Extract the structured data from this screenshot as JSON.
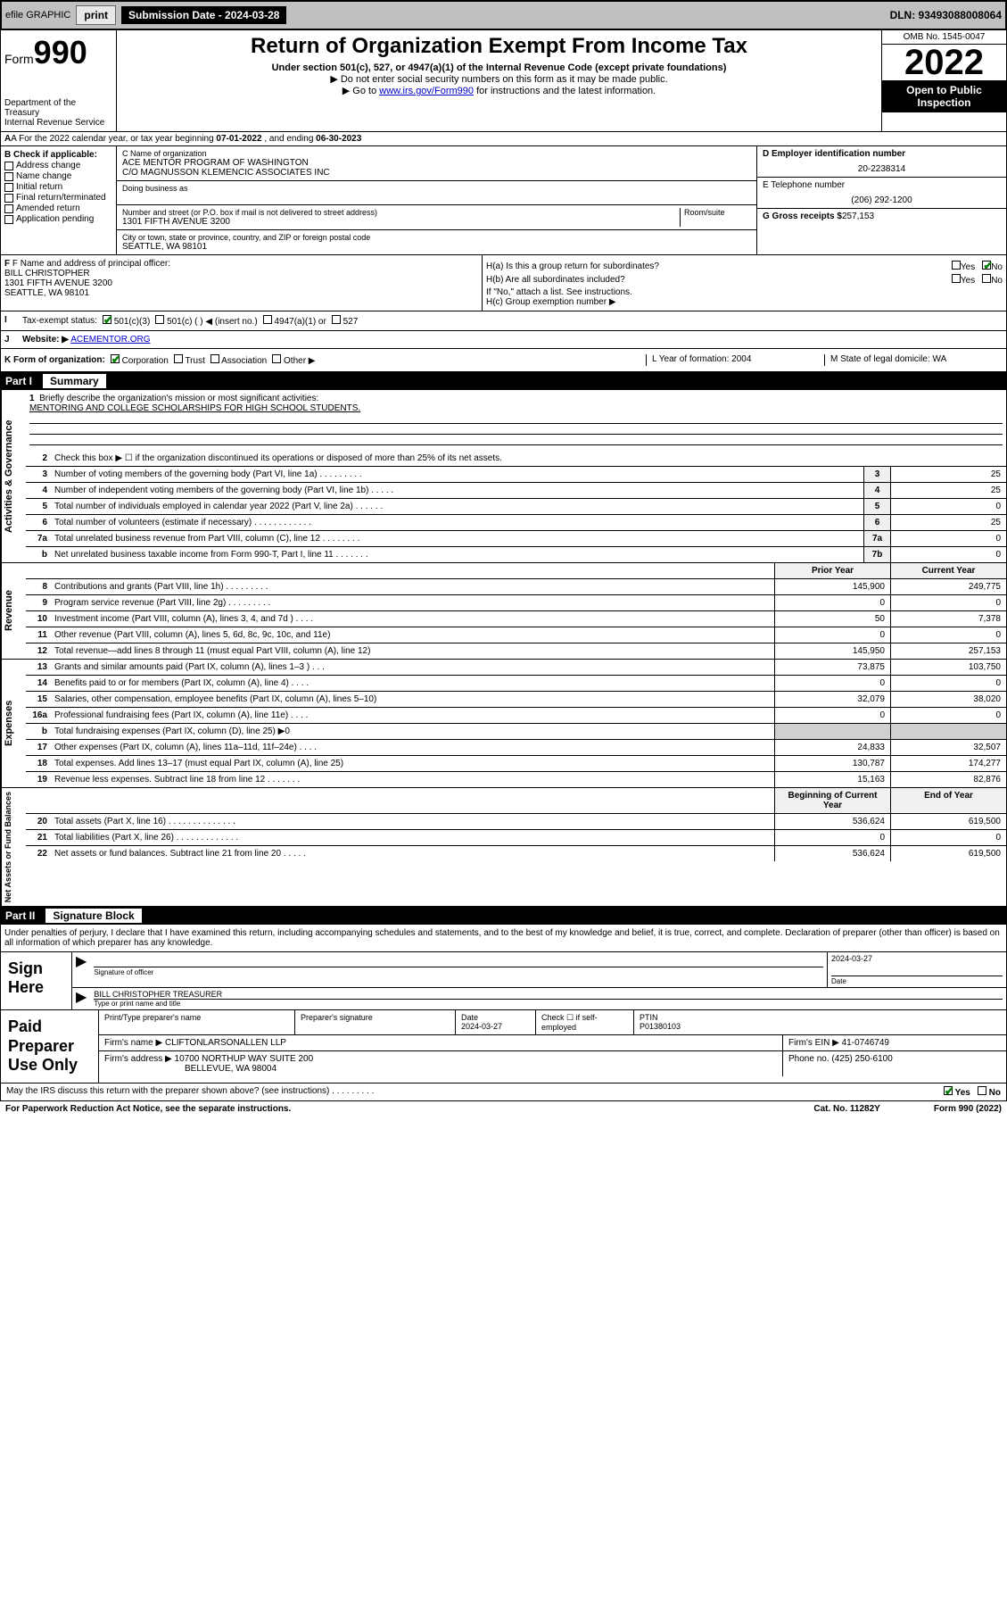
{
  "topbar": {
    "efile_label": "efile GRAPHIC",
    "print_btn": "print",
    "sub_label": "Submission Date - 2024-03-28",
    "dln": "DLN: 93493088008064"
  },
  "header": {
    "form_prefix": "Form",
    "form_num": "990",
    "dept": "Department of the Treasury\nInternal Revenue Service",
    "title": "Return of Organization Exempt From Income Tax",
    "sub1": "Under section 501(c), 527, or 4947(a)(1) of the Internal Revenue Code (except private foundations)",
    "sub2": "▶ Do not enter social security numbers on this form as it may be made public.",
    "sub3_pre": "▶ Go to ",
    "sub3_link": "www.irs.gov/Form990",
    "sub3_post": " for instructions and the latest information.",
    "omb": "OMB No. 1545-0047",
    "year": "2022",
    "inspect": "Open to Public Inspection"
  },
  "rowA": {
    "text": "A For the 2022 calendar year, or tax year beginning ",
    "begin": "07-01-2022",
    "mid": " , and ending ",
    "end": "06-30-2023"
  },
  "colB": {
    "lbl": "B Check if applicable:",
    "items": [
      "Address change",
      "Name change",
      "Initial return",
      "Final return/terminated",
      "Amended return",
      "Application pending"
    ]
  },
  "colC": {
    "name_lbl": "C Name of organization",
    "name": "ACE MENTOR PROGRAM OF WASHINGTON",
    "co": "C/O MAGNUSSON KLEMENCIC ASSOCIATES INC",
    "dba_lbl": "Doing business as",
    "addr_lbl": "Number and street (or P.O. box if mail is not delivered to street address)",
    "room_lbl": "Room/suite",
    "addr": "1301 FIFTH AVENUE 3200",
    "city_lbl": "City or town, state or province, country, and ZIP or foreign postal code",
    "city": "SEATTLE, WA  98101"
  },
  "colD": {
    "ein_lbl": "D Employer identification number",
    "ein": "20-2238314",
    "tel_lbl": "E Telephone number",
    "tel": "(206) 292-1200",
    "gross_lbl": "G Gross receipts $",
    "gross": "257,153"
  },
  "blockF": {
    "f_lbl": "F Name and address of principal officer:",
    "f_name": "BILL CHRISTOPHER",
    "f_addr1": "1301 FIFTH AVENUE 3200",
    "f_addr2": "SEATTLE, WA  98101",
    "ha": "H(a)  Is this a group return for subordinates?",
    "hb": "H(b)  Are all subordinates included?",
    "hb_note": "If \"No,\" attach a list. See instructions.",
    "hc": "H(c)  Group exemption number ▶",
    "yes": "Yes",
    "no": "No"
  },
  "rowI": {
    "lbl": "I",
    "txt": "Tax-exempt status:",
    "opts": [
      "501(c)(3)",
      "501(c) (  ) ◀ (insert no.)",
      "4947(a)(1) or",
      "527"
    ]
  },
  "rowJ": {
    "lbl": "J",
    "txt": "Website: ▶",
    "link": "ACEMENTOR.ORG"
  },
  "rowK": {
    "k": "K Form of organization:",
    "opts": [
      "Corporation",
      "Trust",
      "Association",
      "Other ▶"
    ],
    "l": "L Year of formation: 2004",
    "m": "M State of legal domicile: WA"
  },
  "part1": {
    "pn": "Part I",
    "pt": "Summary"
  },
  "mission": {
    "num": "1",
    "lbl": "Briefly describe the organization's mission or most significant activities:",
    "txt": "MENTORING AND COLLEGE SCHOLARSHIPS FOR HIGH SCHOOL STUDENTS."
  },
  "gov": {
    "tab": "Activities & Governance",
    "rows": [
      {
        "n": "2",
        "t": "Check this box ▶ ☐  if the organization discontinued its operations or disposed of more than 25% of its net assets.",
        "b": "",
        "v": ""
      },
      {
        "n": "3",
        "t": "Number of voting members of the governing body (Part VI, line 1a)   .    .    .    .    .    .    .    .    .",
        "b": "3",
        "v": "25"
      },
      {
        "n": "4",
        "t": "Number of independent voting members of the governing body (Part VI, line 1b)    .    .    .    .    .",
        "b": "4",
        "v": "25"
      },
      {
        "n": "5",
        "t": "Total number of individuals employed in calendar year 2022 (Part V, line 2a)   .    .    .    .    .    .",
        "b": "5",
        "v": "0"
      },
      {
        "n": "6",
        "t": "Total number of volunteers (estimate if necessary)    .    .    .    .    .    .    .    .    .    .    .    .",
        "b": "6",
        "v": "25"
      },
      {
        "n": "7a",
        "t": "Total unrelated business revenue from Part VIII, column (C), line 12   .    .    .    .    .    .    .    .",
        "b": "7a",
        "v": "0"
      },
      {
        "n": "b",
        "t": "Net unrelated business taxable income from Form 990-T, Part I, line 11    .    .    .    .    .    .    .",
        "b": "7b",
        "v": "0"
      }
    ]
  },
  "rev": {
    "tab": "Revenue",
    "hdr_prior": "Prior Year",
    "hdr_curr": "Current Year",
    "rows": [
      {
        "n": "8",
        "t": "Contributions and grants (Part VIII, line 1h)    .    .    .    .    .    .    .    .    .",
        "p": "145,900",
        "c": "249,775"
      },
      {
        "n": "9",
        "t": "Program service revenue (Part VIII, line 2g)   .    .    .    .    .    .    .    .    .",
        "p": "0",
        "c": "0"
      },
      {
        "n": "10",
        "t": "Investment income (Part VIII, column (A), lines 3, 4, and 7d )    .    .    .    .",
        "p": "50",
        "c": "7,378"
      },
      {
        "n": "11",
        "t": "Other revenue (Part VIII, column (A), lines 5, 6d, 8c, 9c, 10c, and 11e)",
        "p": "0",
        "c": "0"
      },
      {
        "n": "12",
        "t": "Total revenue—add lines 8 through 11 (must equal Part VIII, column (A), line 12)",
        "p": "145,950",
        "c": "257,153"
      }
    ]
  },
  "exp": {
    "tab": "Expenses",
    "rows": [
      {
        "n": "13",
        "t": "Grants and similar amounts paid (Part IX, column (A), lines 1–3 )    .    .    .",
        "p": "73,875",
        "c": "103,750"
      },
      {
        "n": "14",
        "t": "Benefits paid to or for members (Part IX, column (A), line 4)    .    .    .    .",
        "p": "0",
        "c": "0"
      },
      {
        "n": "15",
        "t": "Salaries, other compensation, employee benefits (Part IX, column (A), lines 5–10)",
        "p": "32,079",
        "c": "38,020"
      },
      {
        "n": "16a",
        "t": "Professional fundraising fees (Part IX, column (A), line 11e)    .    .    .    .",
        "p": "0",
        "c": "0"
      },
      {
        "n": "b",
        "t": "Total fundraising expenses (Part IX, column (D), line 25) ▶0",
        "p": "",
        "c": "",
        "shade": true
      },
      {
        "n": "17",
        "t": "Other expenses (Part IX, column (A), lines 11a–11d, 11f–24e)    .    .    .    .",
        "p": "24,833",
        "c": "32,507"
      },
      {
        "n": "18",
        "t": "Total expenses. Add lines 13–17 (must equal Part IX, column (A), line 25)",
        "p": "130,787",
        "c": "174,277"
      },
      {
        "n": "19",
        "t": "Revenue less expenses. Subtract line 18 from line 12   .    .    .    .    .    .    .",
        "p": "15,163",
        "c": "82,876"
      }
    ]
  },
  "net": {
    "tab": "Net Assets or Fund Balances",
    "hdr_begin": "Beginning of Current Year",
    "hdr_end": "End of Year",
    "rows": [
      {
        "n": "20",
        "t": "Total assets (Part X, line 16)   .    .    .    .    .    .    .    .    .    .    .    .    .    .",
        "p": "536,624",
        "c": "619,500"
      },
      {
        "n": "21",
        "t": "Total liabilities (Part X, line 26)    .    .    .    .    .    .    .    .    .    .    .    .    .",
        "p": "0",
        "c": "0"
      },
      {
        "n": "22",
        "t": "Net assets or fund balances. Subtract line 21 from line 20    .    .    .    .    .",
        "p": "536,624",
        "c": "619,500"
      }
    ]
  },
  "part2": {
    "pn": "Part II",
    "pt": "Signature Block"
  },
  "sig": {
    "intro": "Under penalties of perjury, I declare that I have examined this return, including accompanying schedules and statements, and to the best of my knowledge and belief, it is true, correct, and complete. Declaration of preparer (other than officer) is based on all information of which preparer has any knowledge.",
    "sign_here": "Sign Here",
    "sig_of_officer": "Signature of officer",
    "date_lbl": "Date",
    "date": "2024-03-27",
    "name": "BILL CHRISTOPHER  TREASURER",
    "name_lbl": "Type or print name and title"
  },
  "paid": {
    "lbl": "Paid Preparer Use Only",
    "h1": "Print/Type preparer's name",
    "h2": "Preparer's signature",
    "h3_lbl": "Date",
    "h3": "2024-03-27",
    "h4": "Check ☐ if self-employed",
    "h5_lbl": "PTIN",
    "h5": "P01380103",
    "firm_name_lbl": "Firm's name      ▶",
    "firm_name": "CLIFTONLARSONALLEN LLP",
    "firm_ein_lbl": "Firm's EIN ▶",
    "firm_ein": "41-0746749",
    "firm_addr_lbl": "Firm's address ▶",
    "firm_addr1": "10700 NORTHUP WAY SUITE 200",
    "firm_addr2": "BELLEVUE, WA  98004",
    "phone_lbl": "Phone no.",
    "phone": "(425) 250-6100"
  },
  "footer": {
    "q": "May the IRS discuss this return with the preparer shown above? (see instructions)    .    .    .    .    .    .    .    .    .",
    "yes": "Yes",
    "no": "No",
    "pra": "For Paperwork Reduction Act Notice, see the separate instructions.",
    "cat": "Cat. No. 11282Y",
    "form": "Form 990 (2022)"
  }
}
